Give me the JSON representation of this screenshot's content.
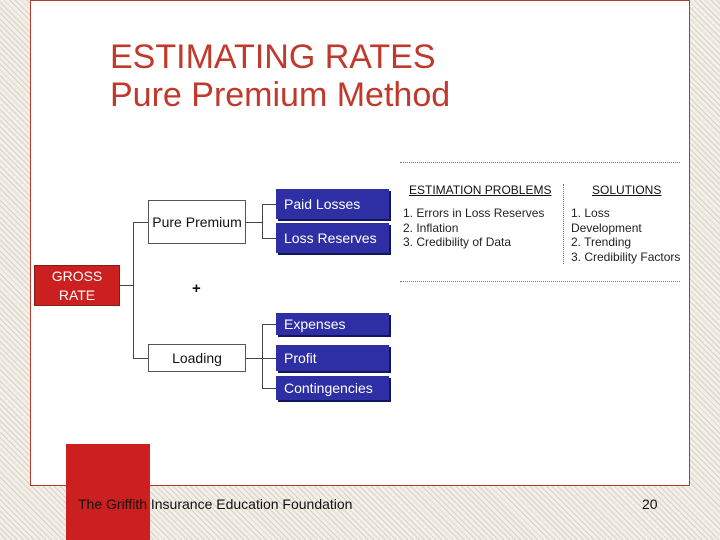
{
  "title": {
    "line1": "ESTIMATING RATES",
    "line2": "Pure Premium Method"
  },
  "diagram": {
    "gross_rate": "GROSS RATE",
    "pure_premium": "Pure Premium",
    "loading": "Loading",
    "plus": "+",
    "pure_items": [
      "Paid Losses",
      "Loss Reserves"
    ],
    "loading_items": [
      "Expenses",
      "Profit",
      "Contingencies"
    ]
  },
  "estimation": {
    "heading": "ESTIMATION PROBLEMS",
    "items": [
      "1. Errors in Loss Reserves",
      "2. Inflation",
      "3. Credibility of Data"
    ]
  },
  "solutions": {
    "heading": "SOLUTIONS",
    "items": [
      "1. Loss",
      "Development",
      "2. Trending",
      "3. Credibility Factors"
    ]
  },
  "footer": {
    "org": "The Griffith Insurance Education Foundation",
    "page": "20"
  },
  "colors": {
    "title": "#c0392b",
    "box_red": "#cc1f1f",
    "box_blue": "#2e2fa4"
  }
}
